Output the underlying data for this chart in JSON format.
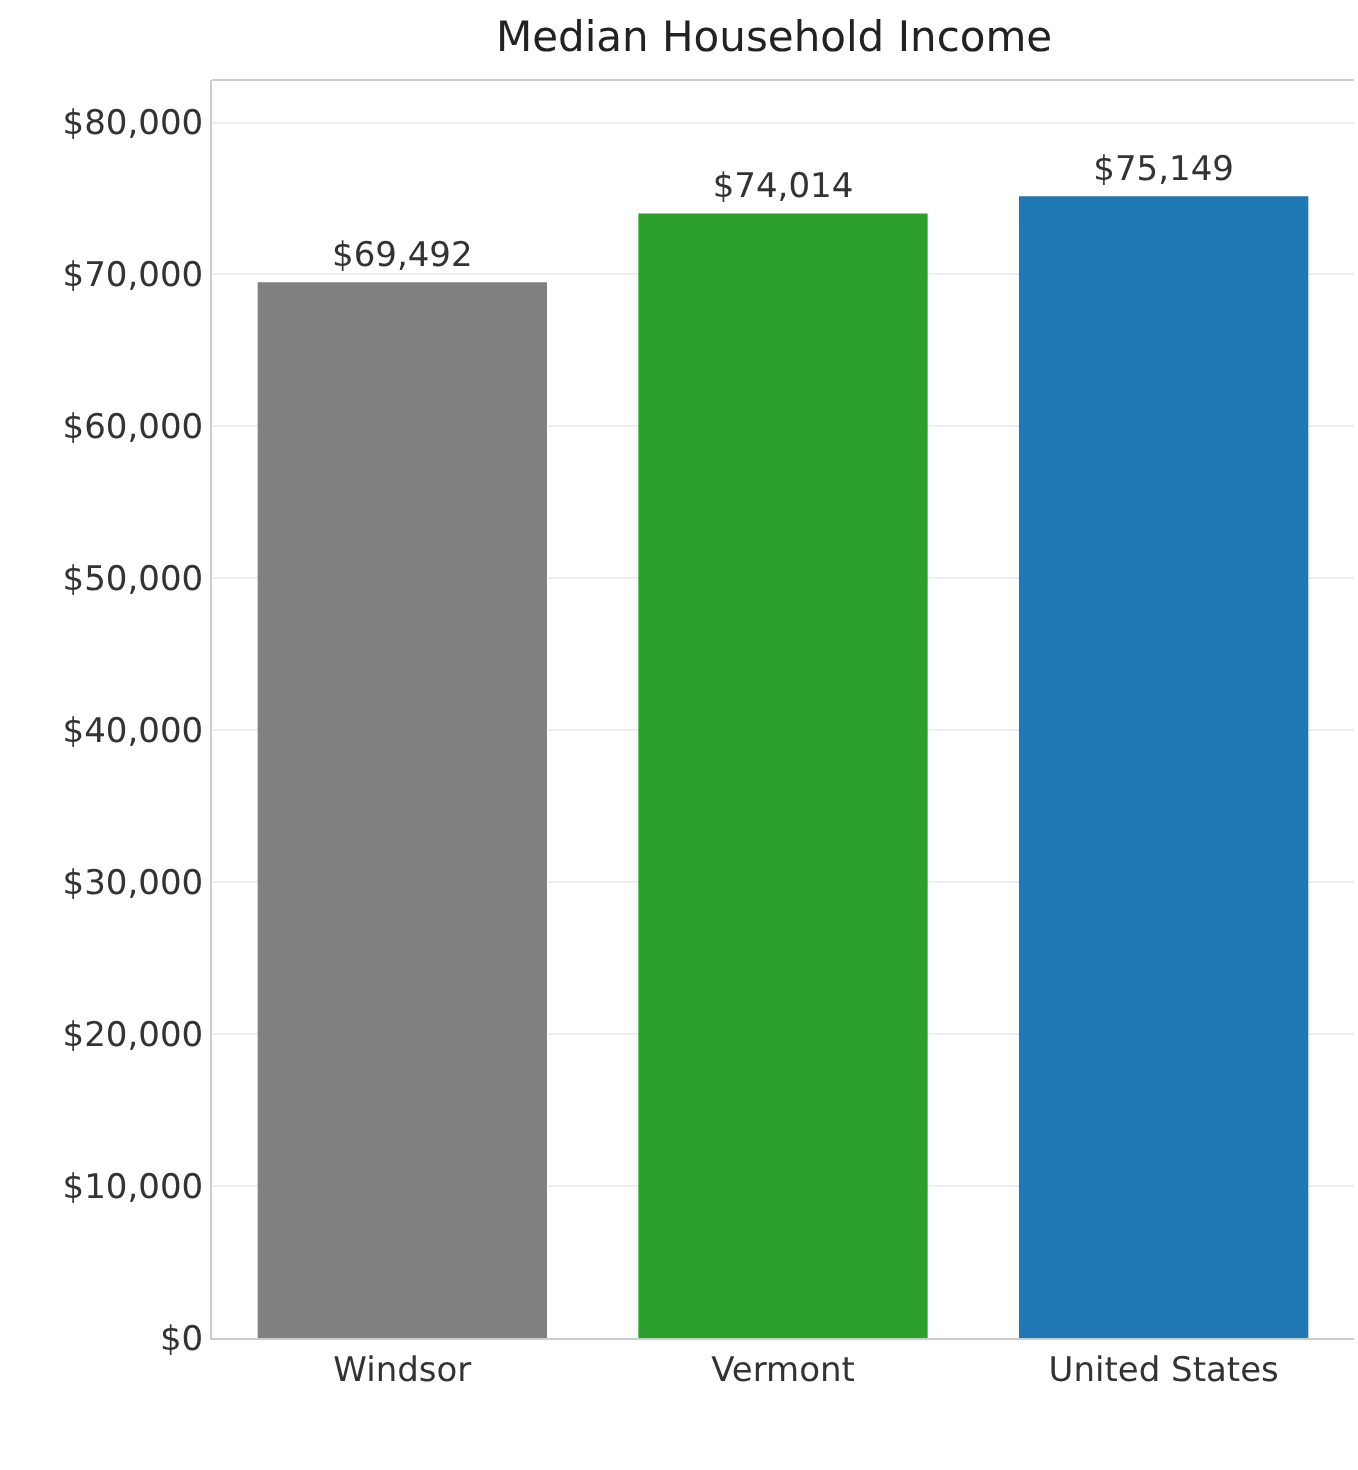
{
  "chart_data": {
    "type": "bar",
    "title": "Median Household Income",
    "categories": [
      "Windsor",
      "Vermont",
      "United States"
    ],
    "values": [
      69492,
      74014,
      75149
    ],
    "colors": [
      "#808080",
      "#2ca02c",
      "#1f77b4"
    ],
    "value_labels": [
      "$69,492",
      "$74,014",
      "$75,149"
    ],
    "ylim": [
      0,
      82800
    ],
    "yticks": [
      {
        "value": 0,
        "label": "$0"
      },
      {
        "value": 10000,
        "label": "$10,000"
      },
      {
        "value": 20000,
        "label": "$20,000"
      },
      {
        "value": 30000,
        "label": "$30,000"
      },
      {
        "value": 40000,
        "label": "$40,000"
      },
      {
        "value": 50000,
        "label": "$50,000"
      },
      {
        "value": 60000,
        "label": "$60,000"
      },
      {
        "value": 70000,
        "label": "$70,000"
      },
      {
        "value": 80000,
        "label": "$80,000"
      }
    ],
    "grid": "y",
    "legend": false
  }
}
